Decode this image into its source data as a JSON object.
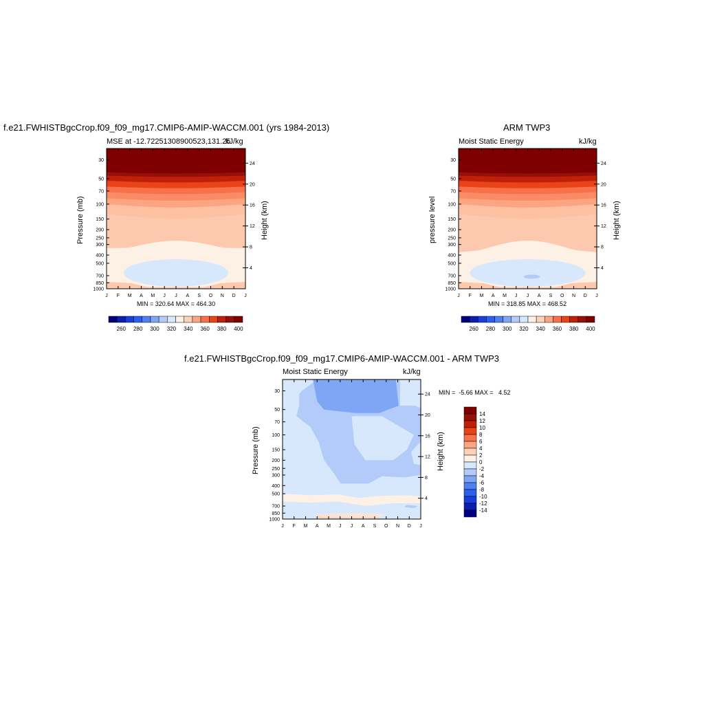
{
  "chart_data": [
    {
      "type": "heatmap",
      "title": "f.e21.FWHISTBgcCrop.f09_f09_mg17.CMIP6-AMIP-WACCM.001 (yrs 1984-2013)",
      "left_string": "MSE at -12.72251308900523,131.25",
      "right_string": "kJ/kg",
      "ylabel": "Pressure (mb)",
      "ylabel_right": "Height (km)",
      "x_ticks": [
        "J",
        "F",
        "M",
        "A",
        "M",
        "J",
        "J",
        "A",
        "S",
        "O",
        "N",
        "D",
        "J"
      ],
      "y_ticks": [
        30,
        50,
        70,
        100,
        150,
        200,
        250,
        300,
        400,
        500,
        700,
        850,
        1000
      ],
      "y_ticks_right": [
        24,
        20,
        16,
        12,
        8,
        4
      ],
      "min_max_text": "MIN = 320.64 MAX = 464.30",
      "levels": [
        260,
        270,
        280,
        290,
        300,
        310,
        320,
        330,
        340,
        350,
        360,
        370,
        380,
        390,
        400
      ],
      "colorbar_labels": [
        260,
        280,
        300,
        320,
        340,
        360,
        380,
        400
      ],
      "min": 320.64,
      "max": 464.3
    },
    {
      "type": "heatmap",
      "title": "ARM TWP3",
      "left_string": "Moist Static Energy",
      "right_string": "kJ/kg",
      "ylabel": "pressure level",
      "ylabel_right": "Height (km)",
      "x_ticks": [
        "J",
        "F",
        "M",
        "A",
        "M",
        "J",
        "J",
        "A",
        "S",
        "O",
        "N",
        "D",
        "J"
      ],
      "y_ticks": [
        30,
        50,
        70,
        100,
        150,
        200,
        250,
        300,
        400,
        500,
        700,
        850,
        1000
      ],
      "y_ticks_right": [
        24,
        20,
        16,
        12,
        8,
        4
      ],
      "min_max_text": "MIN = 318.85 MAX = 468.52",
      "levels": [
        260,
        270,
        280,
        290,
        300,
        310,
        320,
        330,
        340,
        350,
        360,
        370,
        380,
        390,
        400
      ],
      "colorbar_labels": [
        260,
        280,
        300,
        320,
        340,
        360,
        380,
        400
      ],
      "min": 318.85,
      "max": 468.52
    },
    {
      "type": "heatmap",
      "title": "f.e21.FWHISTBgcCrop.f09_f09_mg17.CMIP6-AMIP-WACCM.001 - ARM TWP3",
      "left_string": "Moist Static Energy",
      "right_string": "kJ/kg",
      "ylabel": "Pressure (mb)",
      "ylabel_right": "Height (km)",
      "x_ticks": [
        "J",
        "F",
        "M",
        "A",
        "M",
        "J",
        "J",
        "A",
        "S",
        "O",
        "N",
        "D",
        "J"
      ],
      "y_ticks": [
        30,
        50,
        70,
        100,
        150,
        200,
        250,
        300,
        400,
        500,
        700,
        850,
        1000
      ],
      "y_ticks_right": [
        24,
        20,
        16,
        12,
        8,
        4
      ],
      "min_max_text": "MIN =  -5.66 MAX =   4.52",
      "levels": [
        -14,
        -12,
        -10,
        -8,
        -6,
        -4,
        -2,
        0,
        2,
        4,
        6,
        8,
        10,
        12,
        14
      ],
      "colorbar_labels": [
        14,
        12,
        10,
        8,
        6,
        4,
        2,
        0,
        -2,
        -4,
        -6,
        -8,
        -10,
        -12,
        -14
      ],
      "min": -5.66,
      "max": 4.52
    }
  ],
  "colors": {
    "palette": [
      "#000080",
      "#0a1fb0",
      "#1a3fd8",
      "#2b5ff0",
      "#4d80f0",
      "#7fa6f4",
      "#b2cbf8",
      "#d8e8fc",
      "#fdf0e4",
      "#fdd0b8",
      "#fca582",
      "#f7714a",
      "#e84418",
      "#c0200a",
      "#961008",
      "#7f0000"
    ]
  }
}
